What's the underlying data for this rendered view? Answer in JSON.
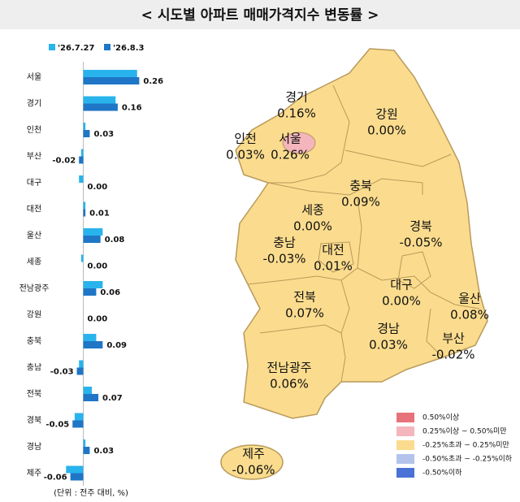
{
  "chart_data": {
    "type": "bar",
    "orientation": "horizontal",
    "title": "< 시도별 아파트 매매가격지수 변동률 >",
    "categories": [
      "서울",
      "경기",
      "인천",
      "부산",
      "대구",
      "대전",
      "울산",
      "세종",
      "전남광주",
      "강원",
      "충북",
      "충남",
      "전북",
      "경북",
      "경남",
      "제주"
    ],
    "series": [
      {
        "name": "'26.7.27",
        "color": "#29b3ec",
        "values": [
          0.25,
          0.15,
          0.01,
          -0.01,
          -0.02,
          0.01,
          0.09,
          -0.01,
          0.09,
          0.0,
          0.06,
          -0.02,
          0.04,
          -0.04,
          0.01,
          -0.08
        ]
      },
      {
        "name": "'26.8.3",
        "color": "#1f76c6",
        "values": [
          0.26,
          0.16,
          0.03,
          -0.02,
          0.0,
          0.01,
          0.08,
          0.0,
          0.06,
          0.0,
          0.09,
          -0.03,
          0.07,
          -0.05,
          0.03,
          -0.06
        ],
        "value_labels": [
          "0.26",
          "0.16",
          "0.03",
          "-0.02",
          "0.00",
          "0.01",
          "0.08",
          "0.00",
          "0.06",
          "0.00",
          "0.09",
          "-0.03",
          "0.07",
          "-0.05",
          "0.03",
          "-0.06"
        ]
      }
    ],
    "xlim": [
      -0.1,
      0.3
    ],
    "note": "(단위 : 전주 대비, %)"
  },
  "map": {
    "regions": [
      {
        "name": "경기",
        "change": "0.16%",
        "color": "#fbdc8e"
      },
      {
        "name": "인천",
        "change": "0.03%",
        "color": "#fbdc8e"
      },
      {
        "name": "서울",
        "change": "0.26%",
        "color": "#f4b5bd"
      },
      {
        "name": "강원",
        "change": "0.00%",
        "color": "#fbdc8e"
      },
      {
        "name": "충북",
        "change": "0.09%",
        "color": "#fbdc8e"
      },
      {
        "name": "세종",
        "change": "0.00%",
        "color": "#fbdc8e"
      },
      {
        "name": "충남",
        "change": "-0.03%",
        "color": "#fbdc8e"
      },
      {
        "name": "대전",
        "change": "0.01%",
        "color": "#fbdc8e"
      },
      {
        "name": "경북",
        "change": "-0.05%",
        "color": "#fbdc8e"
      },
      {
        "name": "대구",
        "change": "0.00%",
        "color": "#fbdc8e"
      },
      {
        "name": "울산",
        "change": "0.08%",
        "color": "#fbdc8e"
      },
      {
        "name": "전북",
        "change": "0.07%",
        "color": "#fbdc8e"
      },
      {
        "name": "경남",
        "change": "0.03%",
        "color": "#fbdc8e"
      },
      {
        "name": "부산",
        "change": "-0.02%",
        "color": "#fbdc8e"
      },
      {
        "name": "전남광주",
        "change": "0.06%",
        "color": "#fbdc8e"
      },
      {
        "name": "제주",
        "change": "-0.06%",
        "color": "#fbdc8e"
      }
    ],
    "legend": [
      {
        "label": "0.50%이상",
        "color": "#e8727b"
      },
      {
        "label": "0.25%이상 ~ 0.50%미만",
        "color": "#f4b5bd"
      },
      {
        "label": "-0.25%초과 ~ 0.25%미만",
        "color": "#fbdc8e"
      },
      {
        "label": "-0.50%초과 ~ -0.25%이하",
        "color": "#b3c3ec"
      },
      {
        "label": "-0.50%이하",
        "color": "#4a72d6"
      }
    ]
  }
}
